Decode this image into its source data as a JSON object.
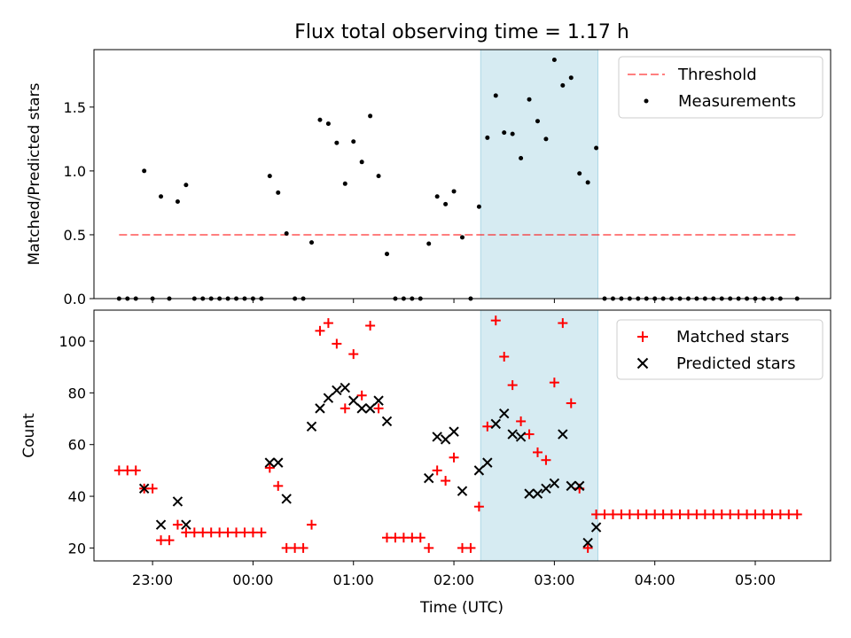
{
  "title": "Flux total observing time = 1.17 h",
  "colors": {
    "highlight": "#add8e6",
    "threshold": "#ff0000",
    "measurements": "#000000",
    "matched": "#ff0000",
    "predicted": "#000000"
  },
  "chart_data": [
    {
      "type": "scatter",
      "ylabel": "Matched/Predicted stars",
      "xlabel": "",
      "xlim": [
        "22:25",
        "05:45"
      ],
      "ylim": [
        0,
        1.95
      ],
      "yticks": [
        0.0,
        0.5,
        1.0,
        1.5
      ],
      "ytick_labels": [
        "0.0",
        "0.5",
        "1.0",
        "1.5"
      ],
      "highlight_span": [
        "02:16",
        "03:26"
      ],
      "legend_position": "upper right",
      "threshold": {
        "name": "Threshold",
        "style": "dashed",
        "x": [
          "22:40",
          "05:25"
        ],
        "y": 0.5
      },
      "series": [
        {
          "name": "Measurements",
          "style": "dot",
          "points": [
            [
              "22:40",
              0
            ],
            [
              "22:45",
              0
            ],
            [
              "22:50",
              0
            ],
            [
              "22:55",
              1.0
            ],
            [
              "23:00",
              0
            ],
            [
              "23:05",
              0.8
            ],
            [
              "23:10",
              0
            ],
            [
              "23:15",
              0.76
            ],
            [
              "23:20",
              0.89
            ],
            [
              "23:25",
              0
            ],
            [
              "23:30",
              0
            ],
            [
              "23:35",
              0
            ],
            [
              "23:40",
              0
            ],
            [
              "23:45",
              0
            ],
            [
              "23:50",
              0
            ],
            [
              "23:55",
              0
            ],
            [
              "00:00",
              0
            ],
            [
              "00:05",
              0
            ],
            [
              "00:10",
              0.96
            ],
            [
              "00:15",
              0.83
            ],
            [
              "00:20",
              0.51
            ],
            [
              "00:25",
              0
            ],
            [
              "00:30",
              0
            ],
            [
              "00:35",
              0.44
            ],
            [
              "00:40",
              1.4
            ],
            [
              "00:45",
              1.37
            ],
            [
              "00:50",
              1.22
            ],
            [
              "00:55",
              0.9
            ],
            [
              "01:00",
              1.23
            ],
            [
              "01:05",
              1.07
            ],
            [
              "01:10",
              1.43
            ],
            [
              "01:15",
              0.96
            ],
            [
              "01:20",
              0.35
            ],
            [
              "01:25",
              0
            ],
            [
              "01:30",
              0
            ],
            [
              "01:35",
              0
            ],
            [
              "01:40",
              0
            ],
            [
              "01:45",
              0.43
            ],
            [
              "01:50",
              0.8
            ],
            [
              "01:55",
              0.74
            ],
            [
              "02:00",
              0.84
            ],
            [
              "02:05",
              0.48
            ],
            [
              "02:10",
              0
            ],
            [
              "02:15",
              0.72
            ],
            [
              "02:20",
              1.26
            ],
            [
              "02:25",
              1.59
            ],
            [
              "02:30",
              1.3
            ],
            [
              "02:35",
              1.29
            ],
            [
              "02:40",
              1.1
            ],
            [
              "02:45",
              1.56
            ],
            [
              "02:50",
              1.39
            ],
            [
              "02:55",
              1.25
            ],
            [
              "03:00",
              1.87
            ],
            [
              "03:05",
              1.67
            ],
            [
              "03:10",
              1.73
            ],
            [
              "03:15",
              0.98
            ],
            [
              "03:20",
              0.91
            ],
            [
              "03:25",
              1.18
            ],
            [
              "03:30",
              0
            ],
            [
              "03:35",
              0
            ],
            [
              "03:40",
              0
            ],
            [
              "03:45",
              0
            ],
            [
              "03:50",
              0
            ],
            [
              "03:55",
              0
            ],
            [
              "04:00",
              0
            ],
            [
              "04:05",
              0
            ],
            [
              "04:10",
              0
            ],
            [
              "04:15",
              0
            ],
            [
              "04:20",
              0
            ],
            [
              "04:25",
              0
            ],
            [
              "04:30",
              0
            ],
            [
              "04:35",
              0
            ],
            [
              "04:40",
              0
            ],
            [
              "04:45",
              0
            ],
            [
              "04:50",
              0
            ],
            [
              "04:55",
              0
            ],
            [
              "05:00",
              0
            ],
            [
              "05:05",
              0
            ],
            [
              "05:10",
              0
            ],
            [
              "05:15",
              0
            ],
            [
              "05:25",
              0
            ]
          ]
        }
      ]
    },
    {
      "type": "scatter",
      "ylabel": "Count",
      "xlabel": "Time (UTC)",
      "xlim": [
        "22:25",
        "05:45"
      ],
      "ylim": [
        15,
        112
      ],
      "yticks": [
        20,
        40,
        60,
        80,
        100
      ],
      "ytick_labels": [
        "20",
        "40",
        "60",
        "80",
        "100"
      ],
      "xticks": [
        "23:00",
        "00:00",
        "01:00",
        "02:00",
        "03:00",
        "04:00",
        "05:00"
      ],
      "highlight_span": [
        "02:16",
        "03:26"
      ],
      "legend_position": "upper right",
      "series": [
        {
          "name": "Matched stars",
          "marker": "+",
          "points": [
            [
              "22:40",
              50
            ],
            [
              "22:45",
              50
            ],
            [
              "22:50",
              50
            ],
            [
              "22:55",
              43
            ],
            [
              "23:00",
              43
            ],
            [
              "23:05",
              23
            ],
            [
              "23:10",
              23
            ],
            [
              "23:15",
              29
            ],
            [
              "23:20",
              26
            ],
            [
              "23:25",
              26
            ],
            [
              "23:30",
              26
            ],
            [
              "23:35",
              26
            ],
            [
              "23:40",
              26
            ],
            [
              "23:45",
              26
            ],
            [
              "23:50",
              26
            ],
            [
              "23:55",
              26
            ],
            [
              "00:00",
              26
            ],
            [
              "00:05",
              26
            ],
            [
              "00:10",
              51
            ],
            [
              "00:15",
              44
            ],
            [
              "00:20",
              20
            ],
            [
              "00:25",
              20
            ],
            [
              "00:30",
              20
            ],
            [
              "00:35",
              29
            ],
            [
              "00:40",
              104
            ],
            [
              "00:45",
              107
            ],
            [
              "00:50",
              99
            ],
            [
              "00:55",
              74
            ],
            [
              "01:00",
              95
            ],
            [
              "01:05",
              79
            ],
            [
              "01:10",
              106
            ],
            [
              "01:15",
              74
            ],
            [
              "01:20",
              24
            ],
            [
              "01:25",
              24
            ],
            [
              "01:30",
              24
            ],
            [
              "01:35",
              24
            ],
            [
              "01:40",
              24
            ],
            [
              "01:45",
              20
            ],
            [
              "01:50",
              50
            ],
            [
              "01:55",
              46
            ],
            [
              "02:00",
              55
            ],
            [
              "02:05",
              20
            ],
            [
              "02:10",
              20
            ],
            [
              "02:15",
              36
            ],
            [
              "02:20",
              67
            ],
            [
              "02:25",
              108
            ],
            [
              "02:30",
              94
            ],
            [
              "02:35",
              83
            ],
            [
              "02:40",
              69
            ],
            [
              "02:45",
              64
            ],
            [
              "02:50",
              57
            ],
            [
              "02:55",
              54
            ],
            [
              "03:00",
              84
            ],
            [
              "03:05",
              107
            ],
            [
              "03:10",
              76
            ],
            [
              "03:15",
              43
            ],
            [
              "03:20",
              20
            ],
            [
              "03:25",
              33
            ],
            [
              "03:30",
              33
            ],
            [
              "03:35",
              33
            ],
            [
              "03:40",
              33
            ],
            [
              "03:45",
              33
            ],
            [
              "03:50",
              33
            ],
            [
              "03:55",
              33
            ],
            [
              "04:00",
              33
            ],
            [
              "04:05",
              33
            ],
            [
              "04:10",
              33
            ],
            [
              "04:15",
              33
            ],
            [
              "04:20",
              33
            ],
            [
              "04:25",
              33
            ],
            [
              "04:30",
              33
            ],
            [
              "04:35",
              33
            ],
            [
              "04:40",
              33
            ],
            [
              "04:45",
              33
            ],
            [
              "04:50",
              33
            ],
            [
              "04:55",
              33
            ],
            [
              "05:00",
              33
            ],
            [
              "05:05",
              33
            ],
            [
              "05:10",
              33
            ],
            [
              "05:15",
              33
            ],
            [
              "05:20",
              33
            ],
            [
              "05:25",
              33
            ]
          ]
        },
        {
          "name": "Predicted stars",
          "marker": "x",
          "points": [
            [
              "22:55",
              43
            ],
            [
              "23:05",
              29
            ],
            [
              "23:15",
              38
            ],
            [
              "23:20",
              29
            ],
            [
              "00:10",
              53
            ],
            [
              "00:15",
              53
            ],
            [
              "00:20",
              39
            ],
            [
              "00:35",
              67
            ],
            [
              "00:40",
              74
            ],
            [
              "00:45",
              78
            ],
            [
              "00:50",
              81
            ],
            [
              "00:55",
              82
            ],
            [
              "01:00",
              77
            ],
            [
              "01:05",
              74
            ],
            [
              "01:10",
              74
            ],
            [
              "01:15",
              77
            ],
            [
              "01:20",
              69
            ],
            [
              "01:45",
              47
            ],
            [
              "01:50",
              63
            ],
            [
              "01:55",
              62
            ],
            [
              "02:00",
              65
            ],
            [
              "02:05",
              42
            ],
            [
              "02:15",
              50
            ],
            [
              "02:20",
              53
            ],
            [
              "02:25",
              68
            ],
            [
              "02:30",
              72
            ],
            [
              "02:35",
              64
            ],
            [
              "02:40",
              63
            ],
            [
              "02:45",
              41
            ],
            [
              "02:50",
              41
            ],
            [
              "02:55",
              43
            ],
            [
              "03:00",
              45
            ],
            [
              "03:05",
              64
            ],
            [
              "03:10",
              44
            ],
            [
              "03:15",
              44
            ],
            [
              "03:20",
              22
            ],
            [
              "03:25",
              28
            ]
          ]
        }
      ]
    }
  ]
}
